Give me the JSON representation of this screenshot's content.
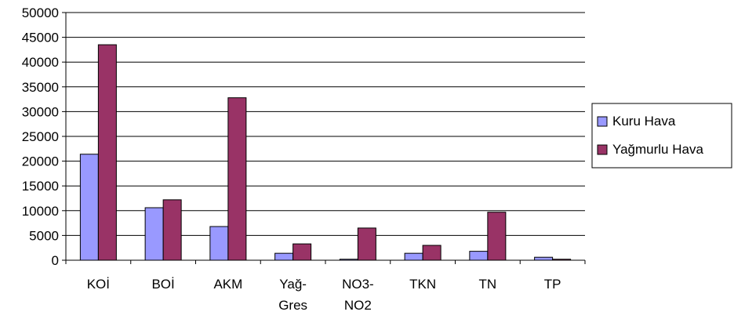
{
  "chart_data": {
    "type": "bar",
    "title": "",
    "xlabel": "",
    "ylabel": "",
    "ylim": [
      0,
      50000
    ],
    "y_ticks": [
      0,
      5000,
      10000,
      15000,
      20000,
      25000,
      30000,
      35000,
      40000,
      45000,
      50000
    ],
    "grid": "horizontal",
    "legend_position": "right",
    "categories": [
      [
        "KOİ"
      ],
      [
        "BOİ"
      ],
      [
        "AKM"
      ],
      [
        "Yağ-",
        "Gres"
      ],
      [
        "NO3-",
        "NO2"
      ],
      [
        "TKN"
      ],
      [
        "TN"
      ],
      [
        "TP"
      ]
    ],
    "series": [
      {
        "name": "Kuru Hava",
        "color": "#9999ff",
        "values": [
          21400,
          10600,
          6800,
          1400,
          200,
          1400,
          1800,
          600
        ]
      },
      {
        "name": "Yağmurlu Hava",
        "color": "#993366",
        "values": [
          43500,
          12200,
          32800,
          3300,
          6500,
          3000,
          9700,
          200
        ]
      }
    ]
  }
}
